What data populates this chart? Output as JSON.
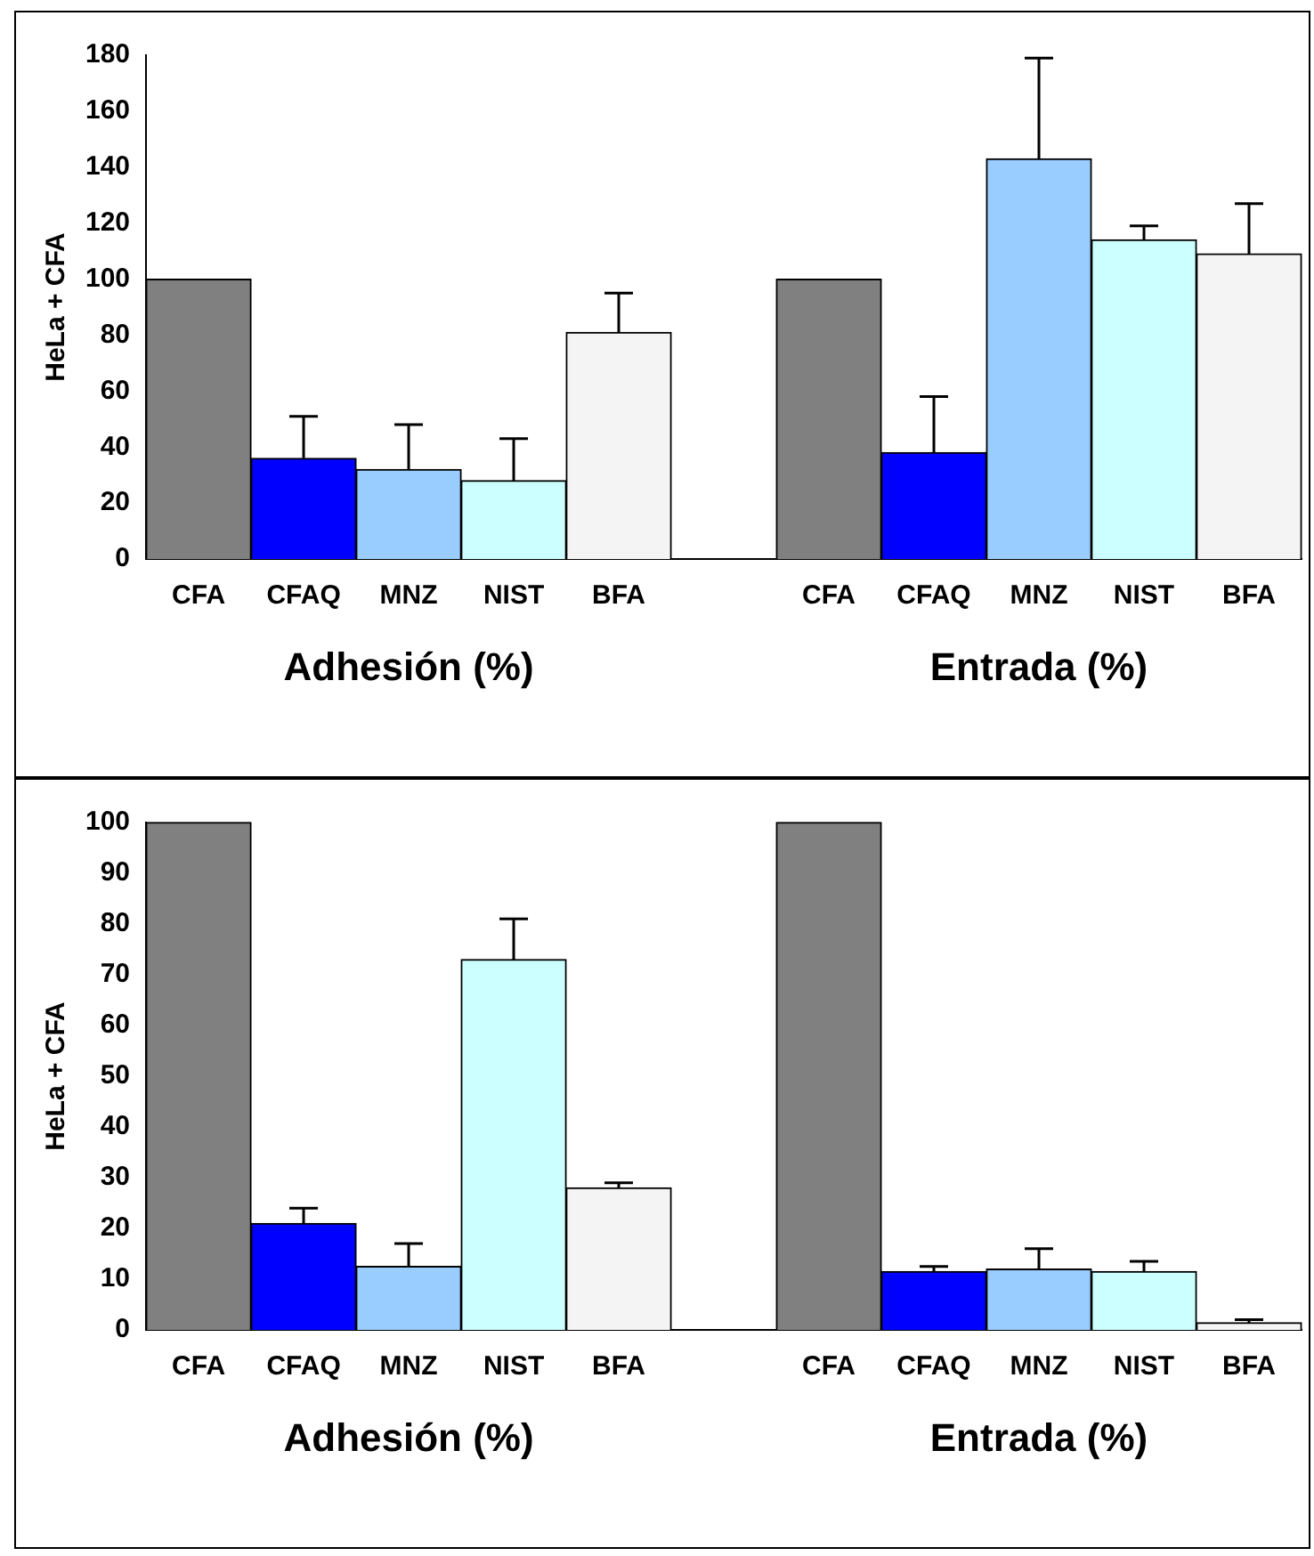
{
  "chart_data": [
    {
      "type": "bar",
      "ylabel": "HeLa + CFA",
      "categories": [
        "CFA",
        "CFAQ",
        "MNZ",
        "NIST",
        "BFA",
        null,
        "CFA",
        "CFAQ",
        "MNZ",
        "NIST",
        "BFA"
      ],
      "values": [
        100,
        36,
        32,
        28,
        81,
        null,
        100,
        38,
        143,
        114,
        109
      ],
      "errors": [
        null,
        15,
        16,
        15,
        14,
        null,
        null,
        20,
        36,
        5,
        18
      ],
      "colors": [
        "#808080",
        "#0000ff",
        "#99ccff",
        "#ccffff",
        "#f4f4f4",
        "#ffffff",
        "#808080",
        "#0000ff",
        "#99ccff",
        "#ccffff",
        "#f4f4f4"
      ],
      "ylim": [
        0,
        180
      ],
      "yticks": [
        0,
        20,
        40,
        60,
        80,
        100,
        120,
        140,
        160,
        180
      ],
      "annotations": [
        "Adhesión (%)",
        "Entrada (%)"
      ]
    },
    {
      "type": "bar",
      "ylabel": "HeLa + CFA",
      "categories": [
        "CFA",
        "CFAQ",
        "MNZ",
        "NIST",
        "BFA",
        null,
        "CFA",
        "CFAQ",
        "MNZ",
        "NIST",
        "BFA"
      ],
      "values": [
        100,
        21,
        12.5,
        73,
        28,
        null,
        100,
        11.5,
        12,
        11.5,
        1.4
      ],
      "errors": [
        null,
        3,
        4.5,
        8,
        1,
        null,
        null,
        1,
        4,
        2,
        0.6
      ],
      "colors": [
        "#808080",
        "#0000ff",
        "#99ccff",
        "#ccffff",
        "#f4f4f4",
        "#ffffff",
        "#808080",
        "#0000ff",
        "#99ccff",
        "#ccffff",
        "#f4f4f4"
      ],
      "ylim": [
        0,
        100
      ],
      "yticks": [
        0,
        10,
        20,
        30,
        40,
        50,
        60,
        70,
        80,
        90,
        100
      ],
      "annotations": [
        "Adhesión (%)",
        "Entrada (%)"
      ]
    }
  ]
}
